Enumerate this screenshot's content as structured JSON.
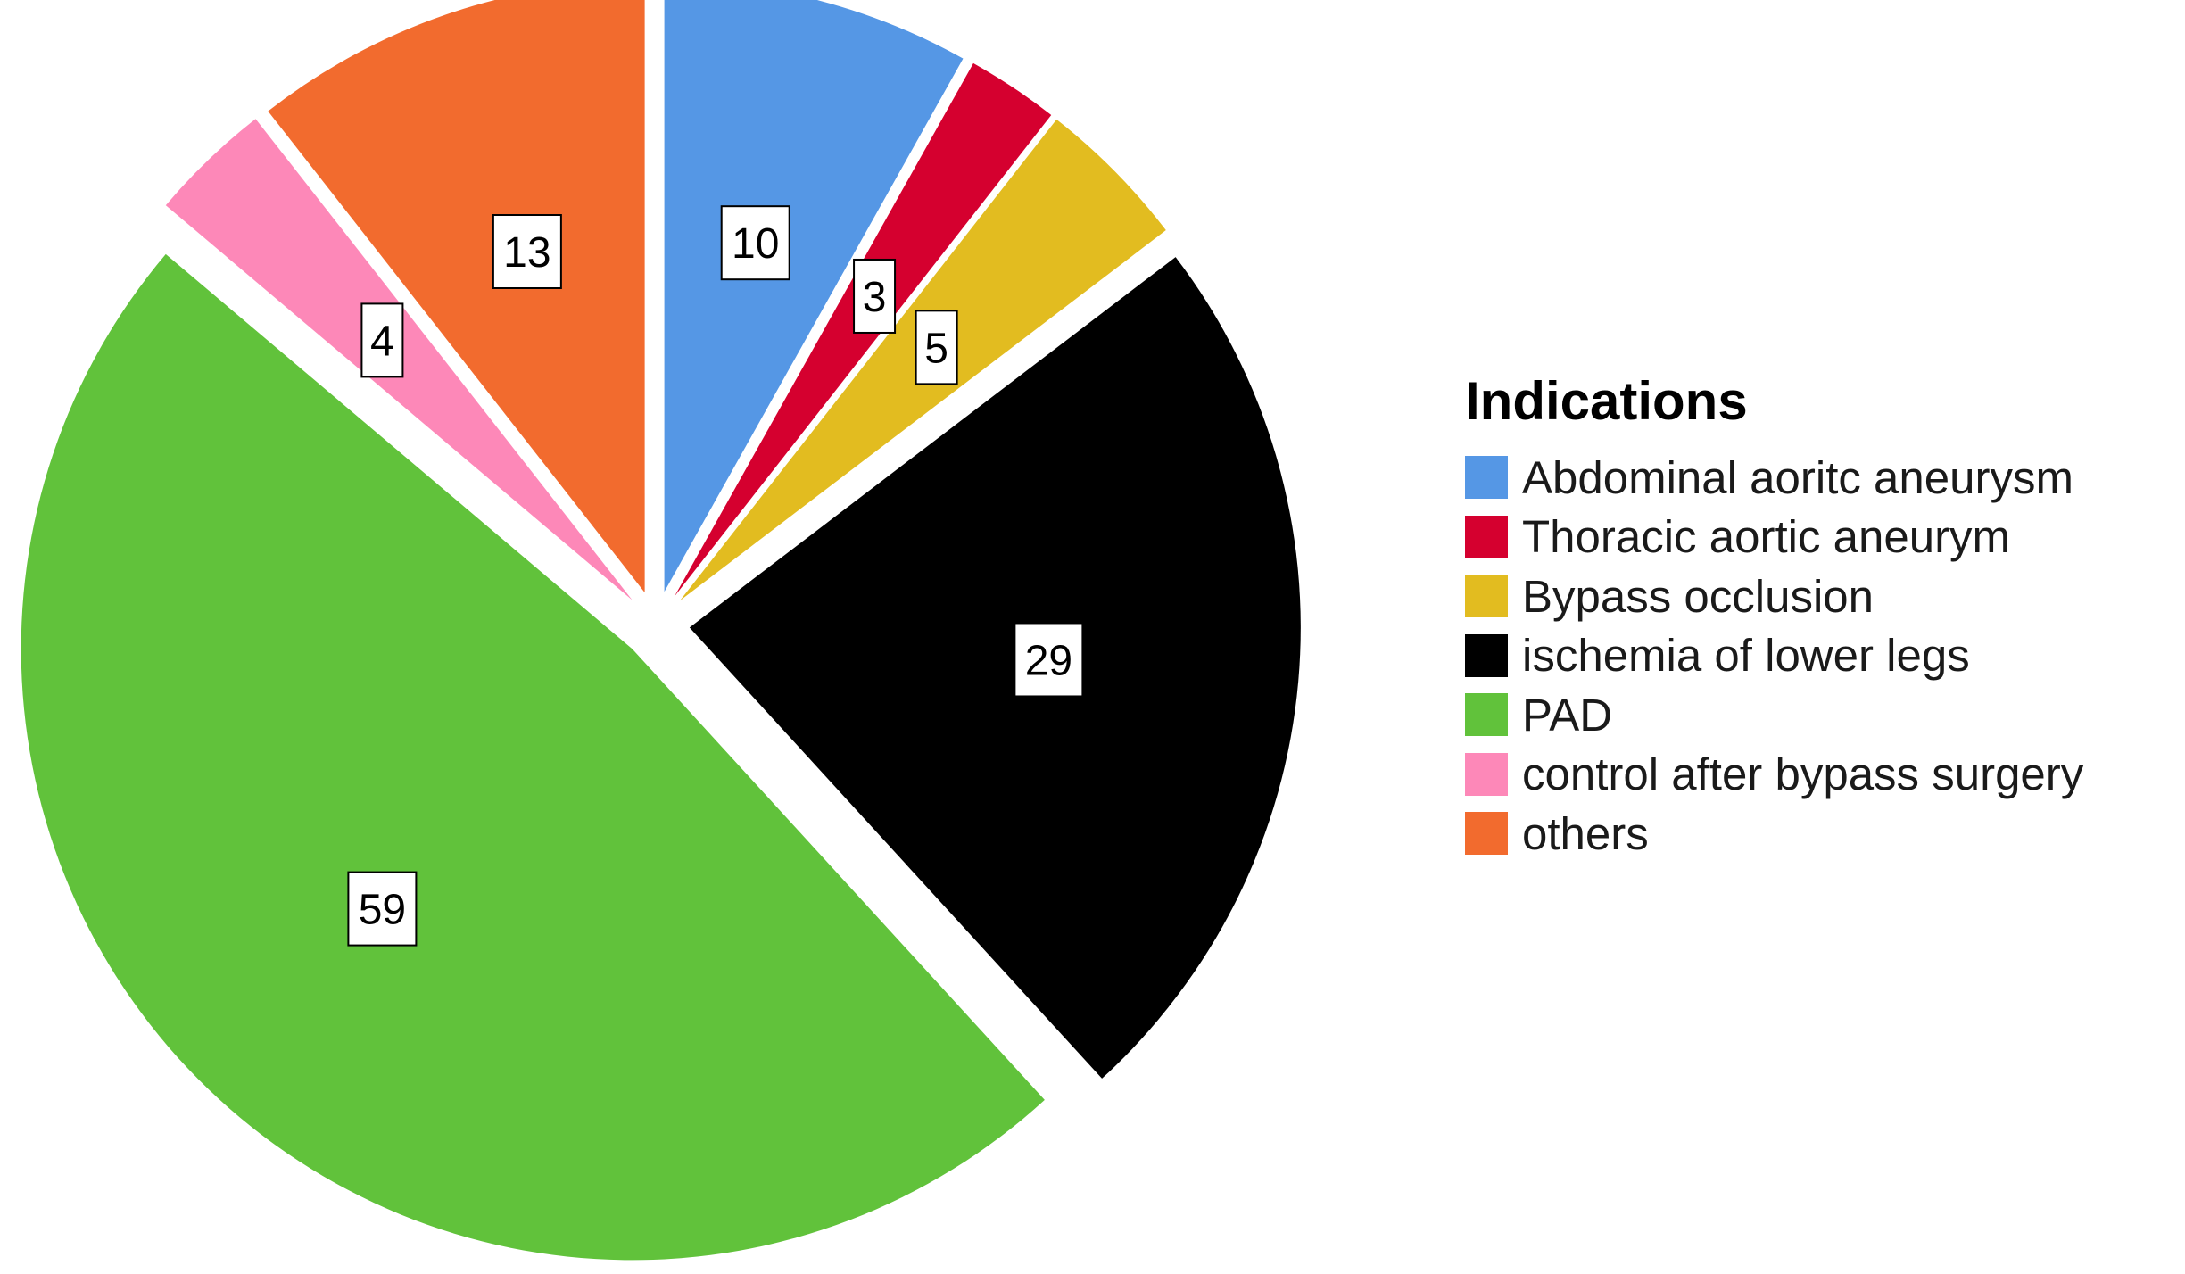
{
  "chart_data": {
    "type": "pie",
    "legend_title": "Indications",
    "legend_position": "right",
    "slices": [
      {
        "label": "Abdominal aoritc aneurysm",
        "value": 10,
        "color": "#5597e5"
      },
      {
        "label": "Thoracic aortic aneurym",
        "value": 3,
        "color": "#d5002f"
      },
      {
        "label": "Bypass occlusion",
        "value": 5,
        "color": "#e2bc20"
      },
      {
        "label": "ischemia of lower legs",
        "value": 29,
        "color": "#000000"
      },
      {
        "label": "PAD",
        "value": 59,
        "color": "#61c23b"
      },
      {
        "label": "control after bypass surgery",
        "value": 4,
        "color": "#fd88b8"
      },
      {
        "label": "others",
        "value": 13,
        "color": "#f26b2e"
      }
    ],
    "slice_order": "clockwise-from-top",
    "exploded_slices": true
  }
}
